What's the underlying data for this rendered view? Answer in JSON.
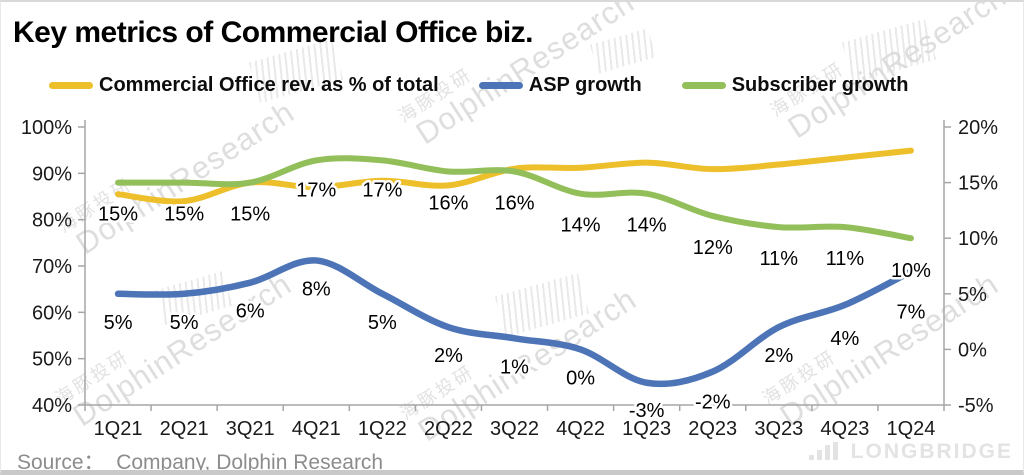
{
  "header": {
    "title": "Key metrics of Commercial Office biz."
  },
  "source": {
    "text": "Source：  Company, Dolphin Research"
  },
  "brand": {
    "logo_text": "LONGBRIDGE"
  },
  "watermark": {
    "en": "DolphinResearch",
    "cn": "海豚投研"
  },
  "chart_data": {
    "type": "line",
    "title": "Key metrics of Commercial Office biz.",
    "legend_position": "top",
    "grid": false,
    "smooth_lines": true,
    "categories": [
      "1Q21",
      "2Q21",
      "3Q21",
      "4Q21",
      "1Q22",
      "2Q22",
      "3Q22",
      "4Q22",
      "1Q23",
      "2Q23",
      "3Q23",
      "4Q23",
      "1Q24"
    ],
    "left_axis": {
      "min": 40,
      "max": 100,
      "values": [
        100,
        90,
        80,
        70,
        60,
        50,
        40
      ],
      "labels": [
        "100%",
        "90%",
        "80%",
        "70%",
        "60%",
        "50%",
        "40%"
      ]
    },
    "right_axis": {
      "min": -5,
      "max": 20,
      "values": [
        20,
        15,
        10,
        5,
        0,
        -5
      ],
      "labels": [
        "20%",
        "15%",
        "10%",
        "5%",
        "0%",
        "-5%"
      ]
    },
    "series": [
      {
        "name": "Commercial Office rev. as % of total",
        "axis": "left",
        "color": "#EDBF2B",
        "values": [
          85.5,
          84.0,
          88.0,
          87.0,
          88.4,
          87.4,
          91.0,
          91.2,
          92.3,
          90.9,
          91.9,
          93.4,
          94.9
        ],
        "labels": null
      },
      {
        "name": "ASP growth",
        "axis": "right",
        "color": "#4C74B6",
        "values": [
          5,
          5,
          6,
          8,
          5,
          2,
          1,
          0,
          -3,
          -2,
          2,
          4,
          7
        ],
        "labels": [
          "5%",
          "5%",
          "6%",
          "8%",
          "5%",
          "2%",
          "1%",
          "0%",
          "-3%",
          "-2%",
          "2%",
          "4%",
          "7%"
        ]
      },
      {
        "name": "Subscriber growth",
        "axis": "right",
        "color": "#92BF5A",
        "values": [
          15,
          15,
          15,
          17,
          17,
          16,
          16,
          14,
          14,
          12,
          11,
          11,
          10
        ],
        "labels": [
          "15%",
          "15%",
          "15%",
          "17%",
          "17%",
          "16%",
          "16%",
          "14%",
          "14%",
          "12%",
          "11%",
          "11%",
          "10%"
        ]
      }
    ]
  }
}
